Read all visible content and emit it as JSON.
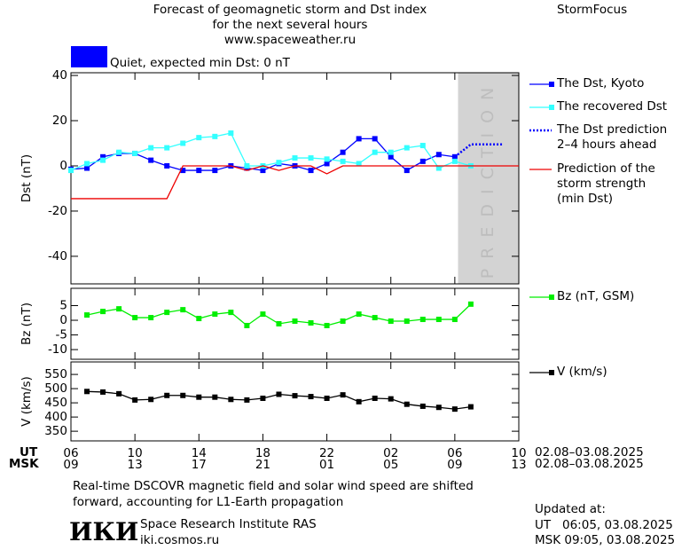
{
  "header": {
    "title": "Forecast of geomagnetic storm and Dst index\nfor the next several hours\nwww.spaceweather.ru",
    "brand": "StormFocus",
    "status": {
      "text": "Quiet, expected min Dst: 0 nT",
      "color": "#0000ff"
    }
  },
  "chart_data": [
    {
      "type": "line",
      "ylabel": "Dst (nT)",
      "x": [
        0,
        1,
        2,
        3,
        4,
        5,
        6,
        7,
        8,
        9,
        10,
        11,
        12,
        13,
        14,
        15,
        16,
        17,
        18,
        19,
        20,
        21,
        22,
        23,
        24,
        25,
        26,
        27,
        28
      ],
      "ylim": [
        -52.2,
        41.2
      ],
      "yticks": [
        40,
        20,
        0,
        -20,
        -40
      ],
      "prediction": {
        "label": "PREDICTION",
        "span": [
          24.2,
          28
        ],
        "color": "#d3d3d3"
      },
      "series": [
        {
          "name": "The Dst, Kyoto",
          "color": "#0000ff",
          "marker": "square",
          "linestyle": "solid",
          "values": [
            -1.5,
            -1,
            4,
            5.5,
            5.5,
            2.5,
            0,
            -2,
            -2,
            -2,
            0,
            -1,
            -2,
            1,
            0,
            -2,
            1,
            6,
            12,
            12,
            4,
            -2,
            2,
            5,
            4,
            null,
            null,
            null,
            null
          ]
        },
        {
          "name": "The recovered Dst",
          "color": "#33ffff",
          "marker": "square",
          "linestyle": "solid",
          "values": [
            -2,
            1,
            2.5,
            6,
            5.5,
            8,
            8,
            10,
            12.5,
            13,
            14.5,
            0,
            0,
            1.5,
            3.5,
            3.5,
            3,
            2,
            1,
            6,
            6,
            8,
            9,
            -1,
            2,
            0,
            null,
            null,
            null
          ]
        },
        {
          "name": "The Dst prediction\n2–4 hours ahead",
          "color": "#0000ff",
          "marker": "none",
          "linestyle": "dotted",
          "values": [
            null,
            null,
            null,
            null,
            null,
            null,
            null,
            null,
            null,
            null,
            null,
            null,
            null,
            null,
            null,
            null,
            null,
            null,
            null,
            null,
            null,
            null,
            null,
            null,
            4,
            9.5,
            9.5,
            9.5,
            null
          ]
        },
        {
          "name": "Prediction of the\nstorm strength\n(min Dst)",
          "color": "#ee0000",
          "marker": "none",
          "linestyle": "solid",
          "values": [
            -14.5,
            -14.5,
            -14.5,
            -14.5,
            -14.5,
            -14.5,
            -14.5,
            0,
            0,
            0,
            0,
            -2,
            0,
            -2,
            0,
            0,
            -3.5,
            0,
            0,
            0,
            0,
            0,
            0,
            0,
            0,
            0,
            0,
            0,
            0
          ]
        }
      ]
    },
    {
      "type": "line",
      "ylabel": "Bz (nT)",
      "x": [
        0,
        1,
        2,
        3,
        4,
        5,
        6,
        7,
        8,
        9,
        10,
        11,
        12,
        13,
        14,
        15,
        16,
        17,
        18,
        19,
        20,
        21,
        22,
        23,
        24,
        25,
        26,
        27,
        28
      ],
      "ylim": [
        -13.3,
        10.9
      ],
      "yticks": [
        5,
        0,
        -5,
        -10
      ],
      "series": [
        {
          "name": "Bz (nT, GSM)",
          "color": "#00ee00",
          "marker": "square",
          "linestyle": "solid",
          "values": [
            null,
            1.8,
            3,
            3.9,
            0.9,
            0.9,
            2.7,
            3.6,
            0.6,
            2.1,
            2.7,
            -1.8,
            2.1,
            -1.2,
            -0.3,
            -0.9,
            -1.8,
            -0.3,
            2.1,
            0.9,
            -0.3,
            -0.3,
            0.3,
            0.3,
            0.3,
            5.5,
            null,
            null,
            null
          ]
        }
      ]
    },
    {
      "type": "line",
      "ylabel": "V (km/s)",
      "x": [
        0,
        1,
        2,
        3,
        4,
        5,
        6,
        7,
        8,
        9,
        10,
        11,
        12,
        13,
        14,
        15,
        16,
        17,
        18,
        19,
        20,
        21,
        22,
        23,
        24,
        25,
        26,
        27,
        28
      ],
      "ylim": [
        316,
        594
      ],
      "yticks": [
        550,
        500,
        450,
        400,
        350
      ],
      "xlim": [
        0,
        28
      ],
      "xticks": [
        {
          "value": 0,
          "label": "06"
        },
        {
          "value": 4,
          "label": "10"
        },
        {
          "value": 8,
          "label": "14"
        },
        {
          "value": 12,
          "label": "18"
        },
        {
          "value": 16,
          "label": "22"
        },
        {
          "value": 20,
          "label": "02"
        },
        {
          "value": 24,
          "label": "06"
        },
        {
          "value": 28,
          "label": "10"
        }
      ],
      "x2ticks": [
        {
          "value": 0,
          "label": "09"
        },
        {
          "value": 4,
          "label": "13"
        },
        {
          "value": 8,
          "label": "17"
        },
        {
          "value": 12,
          "label": "21"
        },
        {
          "value": 16,
          "label": "01"
        },
        {
          "value": 20,
          "label": "05"
        },
        {
          "value": 24,
          "label": "09"
        },
        {
          "value": 28,
          "label": "13"
        }
      ],
      "series": [
        {
          "name": "V (km/s)",
          "color": "#000000",
          "marker": "square",
          "linestyle": "solid",
          "values": [
            null,
            490,
            488,
            482,
            460,
            462,
            476,
            476,
            470,
            470,
            462,
            460,
            466,
            480,
            475,
            472,
            466,
            478,
            454,
            466,
            464,
            445,
            438,
            434,
            428,
            436,
            null,
            null,
            null
          ]
        }
      ]
    }
  ],
  "time_axis": {
    "ut_label": "UT",
    "msk_label": "MSK",
    "ut_range": "02.08–03.08.2025",
    "msk_range": "02.08–03.08.2025"
  },
  "footer": {
    "note": "Real-time DSCOVR magnetic field and solar wind speed are shifted\nforward, accounting for L1-Earth propagation",
    "logo": "ИКИ",
    "institute": "Space Research Institute RAS",
    "site": "iki.cosmos.ru",
    "updated_label": "Updated at:",
    "updated_ut": "UT   06:05, 03.08.2025",
    "updated_msk": "MSK 09:05, 03.08.2025"
  }
}
